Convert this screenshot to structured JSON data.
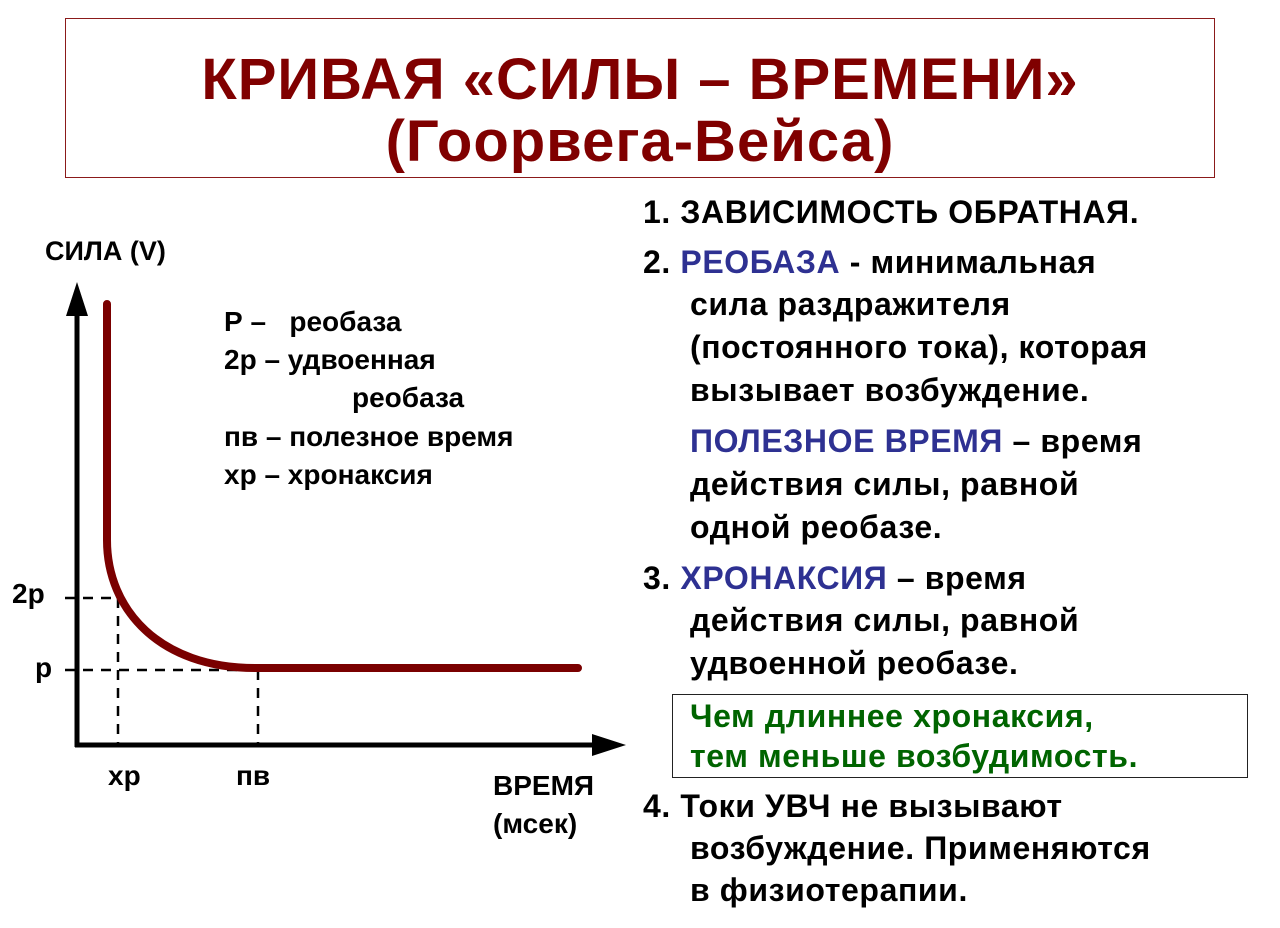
{
  "title": {
    "line1": "КРИВАЯ «СИЛЫ – ВРЕМЕНИ»",
    "line2": "(Гоорвега-Вейса)"
  },
  "colors": {
    "title": "#800000",
    "curve": "#7a0000",
    "highlight_blue": "#2e3192",
    "highlight_green": "#006400"
  },
  "diagram": {
    "y_axis_label": "СИЛА (V)",
    "x_axis_label": "ВРЕМЯ",
    "x_axis_unit": "(мсек)",
    "y_ticks": [
      "2р",
      "р"
    ],
    "x_ticks": [
      "хр",
      "пв"
    ],
    "legend": [
      "Р –   реобаза",
      "2р – удвоенная",
      "реобаза",
      "пв – полезное время",
      "хр – хронаксия"
    ]
  },
  "text": {
    "l1": "1. ЗАВИСИМОСТЬ ОБРАТНАЯ.",
    "l2a": "2. ",
    "l2b": "РЕОБАЗА",
    "l2c": " - минимальная",
    "l3": "сила раздражителя",
    "l4": "(постоянного тока), которая",
    "l5": "вызывает возбуждение.",
    "l6a": "ПОЛЕЗНОЕ ВРЕМЯ",
    "l6b": " – время",
    "l7": "действия силы, равной",
    "l8": "одной реобазе.",
    "l9a": "3. ",
    "l9b": "ХРОНАКСИЯ",
    "l9c": " – время",
    "l10": "действия силы, равной",
    "l11": "удвоенной реобазе.",
    "note1": "Чем длиннее хронаксия,",
    "note2": "тем меньше возбудимость.",
    "l12": "4. Токи УВЧ не вызывают",
    "l13": "возбуждение. Применяются",
    "l14": "в физиотерапии."
  }
}
